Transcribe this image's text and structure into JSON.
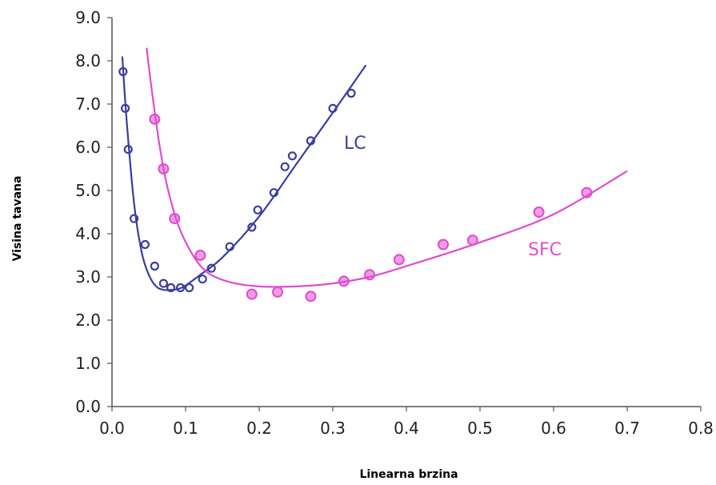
{
  "chart_data": {
    "type": "scatter",
    "title": "",
    "xlabel": "Linearna brzina",
    "ylabel": "Visina tavana",
    "xlim": [
      0.0,
      0.8
    ],
    "ylim": [
      0.0,
      9.0
    ],
    "x_ticks": [
      "0.0",
      "0.1",
      "0.2",
      "0.3",
      "0.4",
      "0.5",
      "0.6",
      "0.7",
      "0.8"
    ],
    "y_ticks": [
      "0.0",
      "1.0",
      "2.0",
      "3.0",
      "4.0",
      "5.0",
      "6.0",
      "7.0",
      "8.0",
      "9.0"
    ],
    "grid": false,
    "series": [
      {
        "name": "LC",
        "color": "#3a3f9c",
        "marker": "open-circle",
        "points": [
          [
            0.015,
            7.75
          ],
          [
            0.018,
            6.9
          ],
          [
            0.022,
            5.95
          ],
          [
            0.03,
            4.35
          ],
          [
            0.045,
            3.75
          ],
          [
            0.058,
            3.25
          ],
          [
            0.07,
            2.85
          ],
          [
            0.08,
            2.75
          ],
          [
            0.093,
            2.75
          ],
          [
            0.105,
            2.75
          ],
          [
            0.123,
            2.95
          ],
          [
            0.135,
            3.2
          ],
          [
            0.16,
            3.7
          ],
          [
            0.19,
            4.15
          ],
          [
            0.198,
            4.55
          ],
          [
            0.22,
            4.95
          ],
          [
            0.235,
            5.55
          ],
          [
            0.245,
            5.8
          ],
          [
            0.27,
            6.15
          ],
          [
            0.3,
            6.9
          ],
          [
            0.325,
            7.25
          ]
        ],
        "fit": [
          [
            0.014,
            8.1
          ],
          [
            0.02,
            6.6
          ],
          [
            0.03,
            4.7
          ],
          [
            0.04,
            3.6
          ],
          [
            0.05,
            3.05
          ],
          [
            0.06,
            2.78
          ],
          [
            0.07,
            2.7
          ],
          [
            0.08,
            2.7
          ],
          [
            0.09,
            2.72
          ],
          [
            0.1,
            2.8
          ],
          [
            0.12,
            3.05
          ],
          [
            0.15,
            3.45
          ],
          [
            0.2,
            4.4
          ],
          [
            0.25,
            5.6
          ],
          [
            0.3,
            6.8
          ],
          [
            0.345,
            7.9
          ]
        ]
      },
      {
        "name": "SFC",
        "color": "#e04ccf",
        "marker": "filled-circle",
        "points": [
          [
            0.058,
            6.65
          ],
          [
            0.07,
            5.5
          ],
          [
            0.085,
            4.35
          ],
          [
            0.12,
            3.5
          ],
          [
            0.19,
            2.6
          ],
          [
            0.225,
            2.65
          ],
          [
            0.27,
            2.55
          ],
          [
            0.315,
            2.9
          ],
          [
            0.35,
            3.05
          ],
          [
            0.39,
            3.4
          ],
          [
            0.45,
            3.75
          ],
          [
            0.49,
            3.85
          ],
          [
            0.58,
            4.5
          ],
          [
            0.645,
            4.95
          ]
        ],
        "fit": [
          [
            0.047,
            8.3
          ],
          [
            0.055,
            7.2
          ],
          [
            0.065,
            6.0
          ],
          [
            0.075,
            5.1
          ],
          [
            0.09,
            4.2
          ],
          [
            0.11,
            3.5
          ],
          [
            0.13,
            3.1
          ],
          [
            0.16,
            2.88
          ],
          [
            0.2,
            2.78
          ],
          [
            0.25,
            2.78
          ],
          [
            0.3,
            2.85
          ],
          [
            0.35,
            3.0
          ],
          [
            0.4,
            3.25
          ],
          [
            0.5,
            3.8
          ],
          [
            0.6,
            4.45
          ],
          [
            0.7,
            5.45
          ]
        ]
      }
    ]
  },
  "series_labels": {
    "lc": "LC",
    "sfc": "SFC"
  }
}
